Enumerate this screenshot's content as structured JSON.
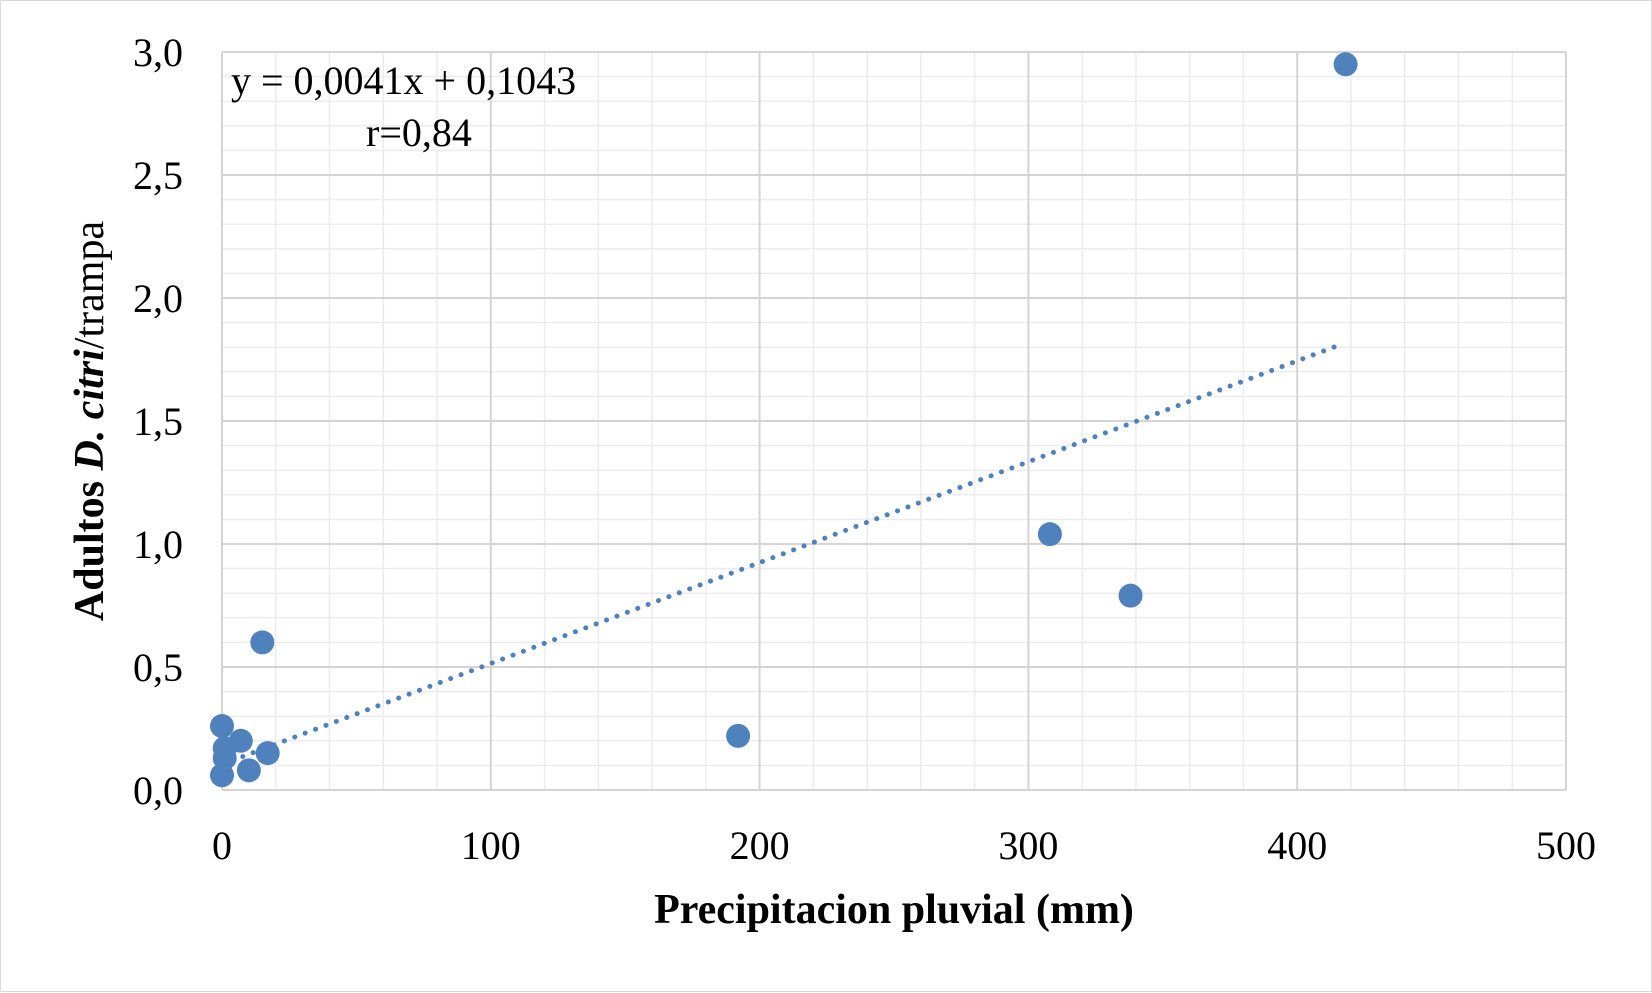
{
  "chart_data": {
    "type": "scatter",
    "xlabel": "Precipitacion pluvial (mm)",
    "ylabel": {
      "part1": "Adultos ",
      "part2": "D. ",
      "part3": "citri",
      "part4": "/trampa"
    },
    "xlim": [
      0,
      500
    ],
    "ylim": [
      0,
      3.0
    ],
    "x_ticks": [
      0,
      100,
      200,
      300,
      400,
      500
    ],
    "x_tick_labels": [
      "0",
      "100",
      "200",
      "300",
      "400",
      "500"
    ],
    "y_ticks": [
      0,
      0.5,
      1.0,
      1.5,
      2.0,
      2.5,
      3.0
    ],
    "y_tick_labels": [
      "0,0",
      "0,5",
      "1,0",
      "1,5",
      "2,0",
      "2,5",
      "3,0"
    ],
    "grid": true,
    "series": [
      {
        "color": "#4f81bd",
        "points": [
          {
            "x": 0,
            "y": 0.26
          },
          {
            "x": 1,
            "y": 0.17
          },
          {
            "x": 1,
            "y": 0.13
          },
          {
            "x": 0,
            "y": 0.06
          },
          {
            "x": 7,
            "y": 0.2
          },
          {
            "x": 10,
            "y": 0.08
          },
          {
            "x": 15,
            "y": 0.6
          },
          {
            "x": 17,
            "y": 0.15
          },
          {
            "x": 192,
            "y": 0.22
          },
          {
            "x": 308,
            "y": 1.04
          },
          {
            "x": 338,
            "y": 0.79
          },
          {
            "x": 418,
            "y": 2.95
          }
        ]
      }
    ],
    "trendline": {
      "type": "linear",
      "style": "dotted",
      "color": "#4f81bd",
      "slope": 0.0041,
      "intercept": 0.1043,
      "x_range": [
        0,
        415
      ]
    },
    "annotations": {
      "equation": "y = 0,0041x + 0,1043",
      "r_value": "r=0,84"
    }
  }
}
